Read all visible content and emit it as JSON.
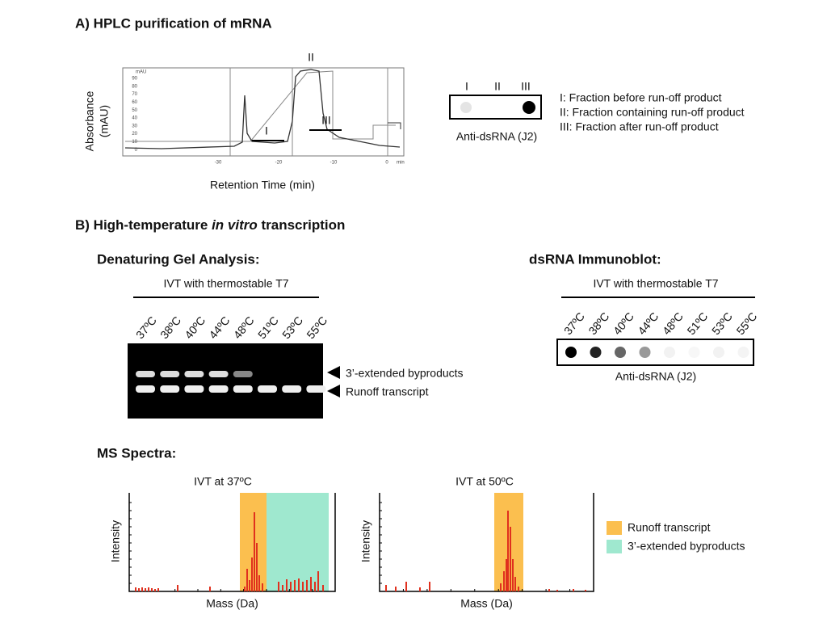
{
  "panel_a": {
    "title": "A) HPLC purification of mRNA",
    "y_label_1": "Absorbance",
    "y_label_2": "(mAU)",
    "x_label": "Retention Time (min)",
    "unit_label": "mAU",
    "yticks": [
      "90",
      "80",
      "70",
      "60",
      "50",
      "40",
      "30",
      "20",
      "10",
      "0"
    ],
    "xticks": [
      "-30",
      "-20",
      "-10",
      "0"
    ],
    "x_unit": "min",
    "fractions": [
      "I",
      "II",
      "III"
    ],
    "blot_lanes": [
      "I",
      "II",
      "III"
    ],
    "blot_label": "Anti-dsRNA (J2)",
    "legend": [
      "I: Fraction before run-off product",
      "II: Fraction containing run-off product",
      "III: Fraction after run-off product"
    ]
  },
  "panel_b": {
    "title_pre": "B) High-temperature ",
    "title_italic": "in vitro",
    "title_post": " transcription",
    "gel": {
      "title": "Denaturing Gel Analysis:",
      "header": "IVT with thermostable T7",
      "lanes": [
        "37ºC",
        "38ºC",
        "40ºC",
        "44ºC",
        "48ºC",
        "51ºC",
        "53ºC",
        "55ºC"
      ],
      "bands": [
        "3’-extended byproducts",
        "Runoff transcript"
      ]
    },
    "immunoblot": {
      "title": "dsRNA Immunoblot:",
      "header": "IVT with thermostable T7",
      "lanes": [
        "37ºC",
        "38ºC",
        "40ºC",
        "44ºC",
        "48ºC",
        "51ºC",
        "53ºC",
        "55ºC"
      ],
      "label": "Anti-dsRNA (J2)"
    },
    "ms": {
      "title": "MS Spectra:",
      "spectra": [
        {
          "title": "IVT at 37ºC",
          "x_label": "Mass (Da)",
          "y_label": "Intensity"
        },
        {
          "title": "IVT at 50ºC",
          "x_label": "Mass (Da)",
          "y_label": "Intensity"
        }
      ],
      "legend": [
        "Runoff transcript",
        "3’-extended byproducts"
      ]
    }
  }
}
